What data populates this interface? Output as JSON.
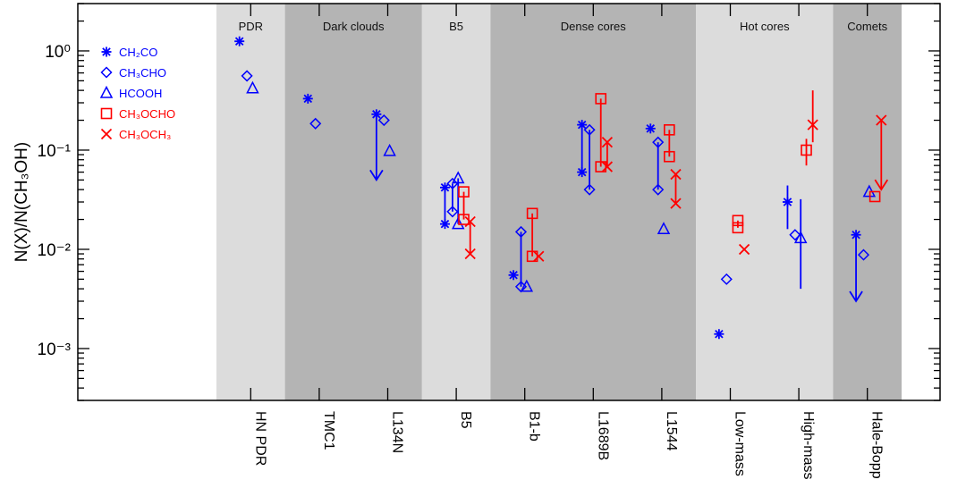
{
  "chart_data": {
    "type": "scatter",
    "yscale": "log",
    "ylim": [
      0.0003,
      3.0
    ],
    "ylabel": "N(X)/N(CH₃OH)",
    "y_ticks": [
      {
        "value": 1.0,
        "label": "10⁰"
      },
      {
        "value": 0.1,
        "label": "10⁻¹"
      },
      {
        "value": 0.01,
        "label": "10⁻²"
      },
      {
        "value": 0.001,
        "label": "10⁻³"
      }
    ],
    "categories": [
      "HN PDR",
      "TMC1",
      "L134N",
      "B5",
      "B1-b",
      "L1689B",
      "L1544",
      "Low-mass",
      "High-mass",
      "Hale-Bopp"
    ],
    "regions": [
      {
        "label": "PDR",
        "from": "HN PDR",
        "to": "HN PDR",
        "shade": "#dcdcdc"
      },
      {
        "label": "Dark clouds",
        "from": "TMC1",
        "to": "L134N",
        "shade": "#b4b4b4"
      },
      {
        "label": "B5",
        "from": "B5",
        "to": "B5",
        "shade": "#dcdcdc"
      },
      {
        "label": "Dense cores",
        "from": "B1-b",
        "to": "L1544",
        "shade": "#b4b4b4"
      },
      {
        "label": "Hot cores",
        "from": "Low-mass",
        "to": "High-mass",
        "shade": "#dcdcdc"
      },
      {
        "label": "Comets",
        "from": "Hale-Bopp",
        "to": "Hale-Bopp",
        "shade": "#b4b4b4"
      }
    ],
    "series": [
      {
        "name": "CH₂CO",
        "color": "#0000ff",
        "marker": "asterisk",
        "offset": -0.3,
        "points": [
          {
            "category": "HN PDR",
            "y": 1.25
          },
          {
            "category": "TMC1",
            "y": 0.33
          },
          {
            "category": "L134N",
            "y": 0.23,
            "upper_limit": true,
            "arrow_to": 0.05
          },
          {
            "category": "B5",
            "y": 0.042
          },
          {
            "category": "B5",
            "y": 0.018
          },
          {
            "category": "B1-b",
            "y": 0.0055
          },
          {
            "category": "L1689B",
            "y": 0.18
          },
          {
            "category": "L1689B",
            "y": 0.06
          },
          {
            "category": "L1544",
            "y": 0.165
          },
          {
            "category": "Low-mass",
            "y": 0.0014
          },
          {
            "category": "High-mass",
            "y": 0.03,
            "err_low": 0.016,
            "err_high": 0.044
          },
          {
            "category": "Hale-Bopp",
            "y": 0.014,
            "upper_limit": true,
            "arrow_to": 0.003
          }
        ]
      },
      {
        "name": "CH₃CHO",
        "color": "#0000ff",
        "marker": "diamond",
        "offset": -0.1,
        "points": [
          {
            "category": "HN PDR",
            "y": 0.56
          },
          {
            "category": "TMC1",
            "y": 0.185
          },
          {
            "category": "L134N",
            "y": 0.2
          },
          {
            "category": "B5",
            "y": 0.046
          },
          {
            "category": "B5",
            "y": 0.024
          },
          {
            "category": "B1-b",
            "y": 0.015
          },
          {
            "category": "B1-b",
            "y": 0.0042
          },
          {
            "category": "L1689B",
            "y": 0.16
          },
          {
            "category": "L1689B",
            "y": 0.04
          },
          {
            "category": "L1544",
            "y": 0.12
          },
          {
            "category": "L1544",
            "y": 0.04
          },
          {
            "category": "Low-mass",
            "y": 0.005
          },
          {
            "category": "High-mass",
            "y": 0.014
          },
          {
            "category": "Hale-Bopp",
            "y": 0.0088
          }
        ]
      },
      {
        "name": "HCOOH",
        "color": "#0000ff",
        "marker": "triangle",
        "offset": 0.05,
        "points": [
          {
            "category": "HN PDR",
            "y": 0.42
          },
          {
            "category": "L134N",
            "y": 0.098
          },
          {
            "category": "B5",
            "y": 0.052
          },
          {
            "category": "B5",
            "y": 0.018
          },
          {
            "category": "B1-b",
            "y": 0.0042
          },
          {
            "category": "L1544",
            "y": 0.016
          },
          {
            "category": "High-mass",
            "y": 0.013,
            "err_low": 0.004,
            "err_high": 0.032
          },
          {
            "category": "Hale-Bopp",
            "y": 0.038
          }
        ]
      },
      {
        "name": "CH₃OCHO",
        "color": "#ff0000",
        "marker": "square",
        "offset": 0.2,
        "points": [
          {
            "category": "B5",
            "y": 0.038
          },
          {
            "category": "B5",
            "y": 0.02
          },
          {
            "category": "B1-b",
            "y": 0.023
          },
          {
            "category": "B1-b",
            "y": 0.0085
          },
          {
            "category": "L1689B",
            "y": 0.33
          },
          {
            "category": "L1689B",
            "y": 0.068
          },
          {
            "category": "L1544",
            "y": 0.16
          },
          {
            "category": "L1544",
            "y": 0.086
          },
          {
            "category": "Low-mass",
            "y": 0.0195
          },
          {
            "category": "Low-mass",
            "y": 0.0165
          },
          {
            "category": "High-mass",
            "y": 0.1,
            "err_low": 0.07,
            "err_high": 0.13
          },
          {
            "category": "Hale-Bopp",
            "y": 0.034
          }
        ]
      },
      {
        "name": "CH₃OCH₃",
        "color": "#ff0000",
        "marker": "cross",
        "offset": 0.37,
        "points": [
          {
            "category": "B5",
            "y": 0.019
          },
          {
            "category": "B5",
            "y": 0.009
          },
          {
            "category": "B1-b",
            "y": 0.0085
          },
          {
            "category": "L1689B",
            "y": 0.12
          },
          {
            "category": "L1689B",
            "y": 0.068
          },
          {
            "category": "L1544",
            "y": 0.057
          },
          {
            "category": "L1544",
            "y": 0.029
          },
          {
            "category": "Low-mass",
            "y": 0.01
          },
          {
            "category": "High-mass",
            "y": 0.18,
            "err_low": 0.12,
            "err_high": 0.4
          },
          {
            "category": "Hale-Bopp",
            "y": 0.2,
            "upper_limit": true,
            "arrow_to": 0.04
          }
        ]
      }
    ],
    "ranges": [
      {
        "series": "CH₂CO",
        "category": "B5",
        "from": 0.018,
        "to": 0.042
      },
      {
        "series": "CH₃CHO",
        "category": "B5",
        "from": 0.024,
        "to": 0.046
      },
      {
        "series": "HCOOH",
        "category": "B5",
        "from": 0.018,
        "to": 0.052
      },
      {
        "series": "CH₃OCHO",
        "category": "B5",
        "from": 0.02,
        "to": 0.038
      },
      {
        "series": "CH₃OCH₃",
        "category": "B5",
        "from": 0.009,
        "to": 0.019
      },
      {
        "series": "CH₂CO",
        "category": "B1-b",
        "from": 0.0055,
        "to": 0.0055
      },
      {
        "series": "CH₃CHO",
        "category": "B1-b",
        "from": 0.0042,
        "to": 0.015
      },
      {
        "series": "CH₃OCHO",
        "category": "B1-b",
        "from": 0.0085,
        "to": 0.023
      },
      {
        "series": "CH₂CO",
        "category": "L1689B",
        "from": 0.06,
        "to": 0.18
      },
      {
        "series": "CH₃CHO",
        "category": "L1689B",
        "from": 0.04,
        "to": 0.16
      },
      {
        "series": "CH₃OCHO",
        "category": "L1689B",
        "from": 0.068,
        "to": 0.33
      },
      {
        "series": "CH₃OCH₃",
        "category": "L1689B",
        "from": 0.068,
        "to": 0.12
      },
      {
        "series": "CH₃CHO",
        "category": "L1544",
        "from": 0.04,
        "to": 0.12
      },
      {
        "series": "CH₃OCHO",
        "category": "L1544",
        "from": 0.086,
        "to": 0.16
      },
      {
        "series": "CH₃OCH₃",
        "category": "L1544",
        "from": 0.029,
        "to": 0.057
      },
      {
        "series": "CH₃OCHO",
        "category": "Low-mass",
        "from": 0.0165,
        "to": 0.0195
      }
    ],
    "legend": {
      "placement": "top-left"
    }
  }
}
